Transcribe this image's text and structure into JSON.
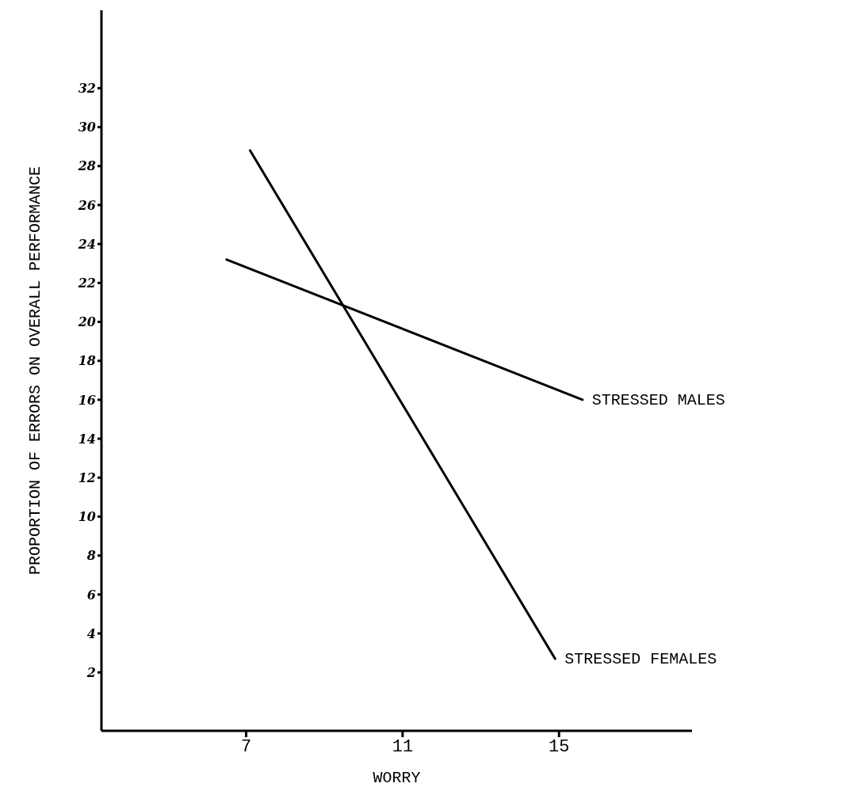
{
  "chart_data": {
    "type": "line",
    "xlabel": "WORRY",
    "ylabel": "PROPORTION OF ERRORS ON OVERALL PERFORMANCE",
    "xlim": [
      3.3,
      18.4
    ],
    "xticks": [
      7,
      11,
      15
    ],
    "ylim": [
      -1,
      36
    ],
    "yticks": [
      2,
      4,
      6,
      8,
      10,
      12,
      14,
      16,
      18,
      20,
      22,
      24,
      26,
      28,
      30,
      32
    ],
    "grid": false,
    "legend": false,
    "marker": "none",
    "line_style": "solid",
    "series": [
      {
        "name": "STRESSED MALES",
        "color": "#000000",
        "x": [
          6.5,
          15.6
        ],
        "values": [
          23.2,
          16.0
        ]
      },
      {
        "name": "STRESSED FEMALES",
        "color": "#000000",
        "x": [
          7.1,
          14.9
        ],
        "values": [
          28.8,
          2.7
        ]
      }
    ]
  }
}
